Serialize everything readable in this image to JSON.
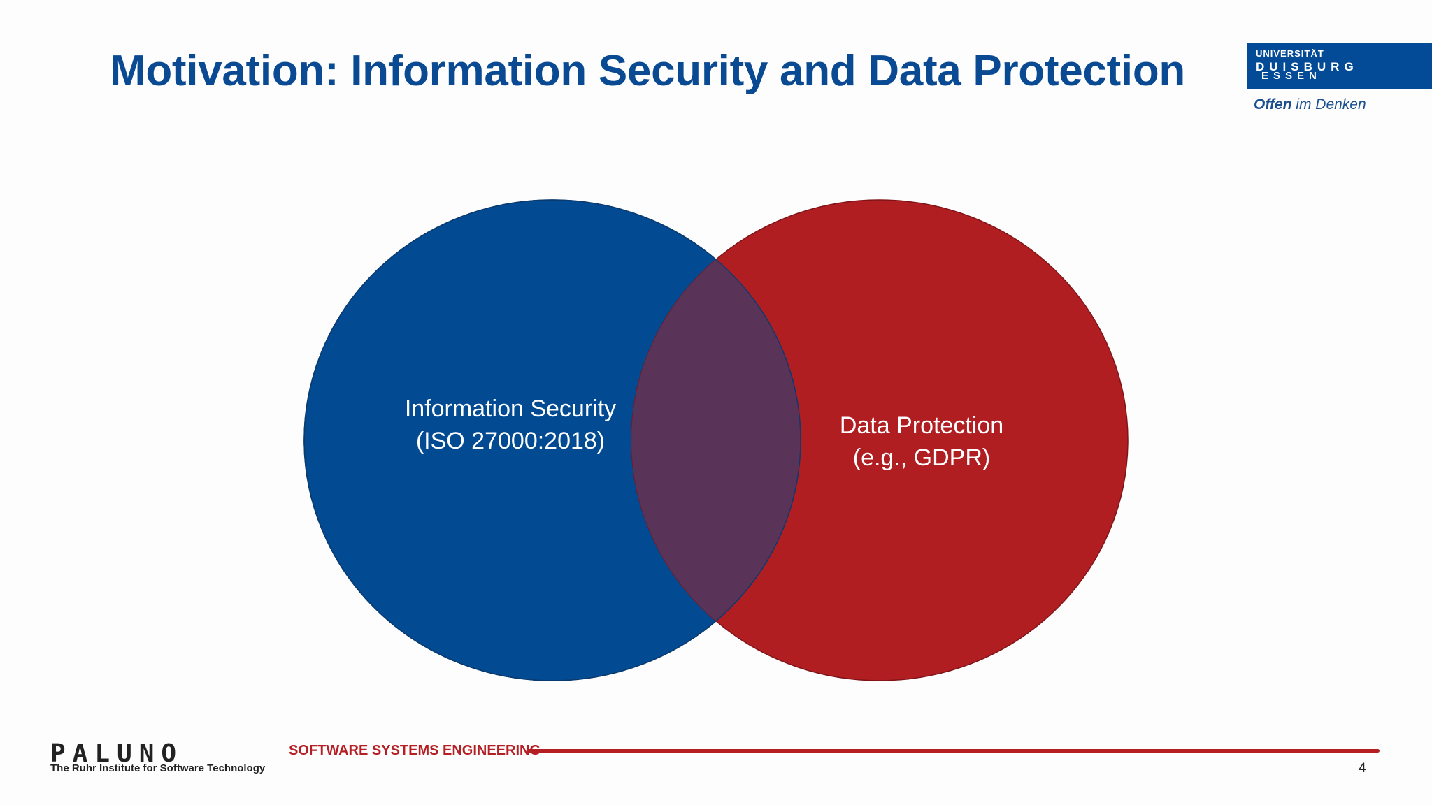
{
  "slide": {
    "title": "Motivation: Information Security and Data Protection",
    "page_number": "4"
  },
  "logo": {
    "line1": "UNIVERSITÄT",
    "line2": "DUISBURG",
    "line3": "ESSEN",
    "slogan_bold": "Offen",
    "slogan_rest": " im Denken"
  },
  "venn": {
    "left": {
      "line1": "Information Security",
      "line2": "(ISO 27000:2018)",
      "color": "#024a91"
    },
    "right": {
      "line1": "Data Protection",
      "line2": "(e.g., GDPR)",
      "color": "#b01e22"
    },
    "overlap_color": "#5a3358"
  },
  "footer": {
    "brand": "PALUNO",
    "brand_sub": "The Ruhr Institute for Software Technology",
    "group": "SOFTWARE SYSTEMS ENGINEERING"
  }
}
